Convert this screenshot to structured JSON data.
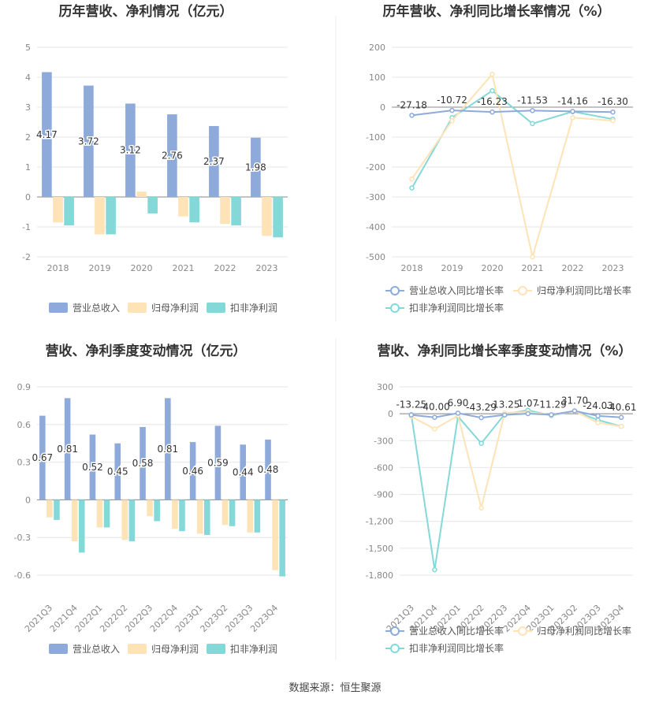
{
  "source": "数据来源：恒生聚源",
  "colors": {
    "revenue": "#8eaadb",
    "parent": "#fde3b5",
    "nonrec": "#84d8d8",
    "grid": "#e6e6e6",
    "axis": "#c0c0c0",
    "text": "#888888",
    "title": "#333333"
  },
  "chart_data": [
    {
      "type": "bar",
      "title": "历年营收、净利情况（亿元）",
      "categories": [
        "2018",
        "2019",
        "2020",
        "2021",
        "2022",
        "2023"
      ],
      "ylim": [
        -2,
        5
      ],
      "yticks": [
        "5",
        "4",
        "3",
        "2",
        "1",
        "0",
        "-1",
        "-2"
      ],
      "ytick_values": [
        5,
        4,
        3,
        2,
        1,
        0,
        -1,
        -2
      ],
      "series": [
        {
          "name": "营业总收入",
          "values": [
            4.17,
            3.72,
            3.12,
            2.76,
            2.37,
            1.98
          ],
          "labels": [
            "4.17",
            "3.72",
            "3.12",
            "2.76",
            "2.37",
            "1.98"
          ]
        },
        {
          "name": "归母净利润",
          "values": [
            -0.85,
            -1.25,
            0.18,
            -0.65,
            -0.9,
            -1.3
          ]
        },
        {
          "name": "扣非净利润",
          "values": [
            -0.95,
            -1.25,
            -0.55,
            -0.85,
            -0.95,
            -1.35
          ]
        }
      ],
      "legend_position": "bottom"
    },
    {
      "type": "line",
      "title": "历年营收、净利同比增长率情况（%）",
      "categories": [
        "2018",
        "2019",
        "2020",
        "2021",
        "2022",
        "2023"
      ],
      "ylim": [
        -500,
        200
      ],
      "yticks": [
        "200",
        "100",
        "0",
        "-100",
        "-200",
        "-300",
        "-400",
        "-500"
      ],
      "ytick_values": [
        200,
        100,
        0,
        -100,
        -200,
        -300,
        -400,
        -500
      ],
      "series": [
        {
          "name": "营业总收入同比增长率",
          "values": [
            -27.18,
            -10.72,
            -16.23,
            -11.53,
            -14.16,
            -16.3
          ],
          "labels": [
            "-27.18",
            "-10.72",
            "-16.23",
            "-11.53",
            "-14.16",
            "-16.30"
          ]
        },
        {
          "name": "归母净利润同比增长率",
          "values": [
            -240,
            -45,
            110,
            -500,
            -35,
            -45
          ]
        },
        {
          "name": "扣非净利润同比增长率",
          "values": [
            -270,
            -35,
            55,
            -55,
            -15,
            -40
          ]
        }
      ],
      "legend_position": "bottom"
    },
    {
      "type": "bar",
      "title": "营收、净利季度变动情况（亿元）",
      "categories": [
        "2021Q3",
        "2021Q4",
        "2022Q1",
        "2022Q2",
        "2022Q3",
        "2022Q4",
        "2023Q1",
        "2023Q2",
        "2023Q3",
        "2023Q4"
      ],
      "ylim": [
        -0.6,
        0.9
      ],
      "yticks": [
        "0.9",
        "0.6",
        "0.3",
        "0",
        "-0.3",
        "-0.6"
      ],
      "ytick_values": [
        0.9,
        0.6,
        0.3,
        0,
        -0.3,
        -0.6
      ],
      "series": [
        {
          "name": "营业总收入",
          "values": [
            0.67,
            0.81,
            0.52,
            0.45,
            0.58,
            0.81,
            0.46,
            0.59,
            0.44,
            0.48
          ],
          "labels": [
            "0.67",
            "0.81",
            "0.52",
            "0.45",
            "0.58",
            "0.81",
            "0.46",
            "0.59",
            "0.44",
            "0.48"
          ]
        },
        {
          "name": "归母净利润",
          "values": [
            -0.14,
            -0.33,
            -0.22,
            -0.32,
            -0.13,
            -0.23,
            -0.27,
            -0.2,
            -0.26,
            -0.56
          ]
        },
        {
          "name": "扣非净利润",
          "values": [
            -0.16,
            -0.42,
            -0.22,
            -0.33,
            -0.17,
            -0.25,
            -0.28,
            -0.21,
            -0.26,
            -0.61
          ]
        }
      ],
      "legend_position": "bottom"
    },
    {
      "type": "line",
      "title": "营收、净利同比增长率季度变动情况（%）",
      "categories": [
        "2021Q3",
        "2021Q4",
        "2022Q1",
        "2022Q2",
        "2022Q3",
        "2022Q4",
        "2023Q1",
        "2023Q2",
        "2023Q3",
        "2023Q4"
      ],
      "ylim": [
        -1800,
        300
      ],
      "yticks": [
        "300",
        "0",
        "-300",
        "-600",
        "-900",
        "-1,200",
        "-1,500",
        "-1,800"
      ],
      "ytick_values": [
        300,
        0,
        -300,
        -600,
        -900,
        -1200,
        -1500,
        -1800
      ],
      "series": [
        {
          "name": "营业总收入同比增长率",
          "values": [
            -13.25,
            -40.0,
            6.9,
            -43.29,
            -13.25,
            1.07,
            -11.29,
            31.7,
            -24.03,
            -40.61
          ],
          "labels": [
            "-13.25",
            "-40.00",
            "6.90",
            "-43.29",
            "-13.25",
            "1.07",
            "-11.29",
            "31.70",
            "-24.03",
            "-40.61"
          ]
        },
        {
          "name": "归母净利润同比增长率",
          "values": [
            -30,
            -170,
            -20,
            -1050,
            10,
            20,
            -15,
            30,
            -100,
            -140
          ]
        },
        {
          "name": "扣非净利润同比增长率",
          "values": [
            -10,
            -1740,
            -30,
            -330,
            -5,
            40,
            -20,
            30,
            -70,
            -140
          ]
        }
      ],
      "legend_position": "bottom"
    }
  ]
}
